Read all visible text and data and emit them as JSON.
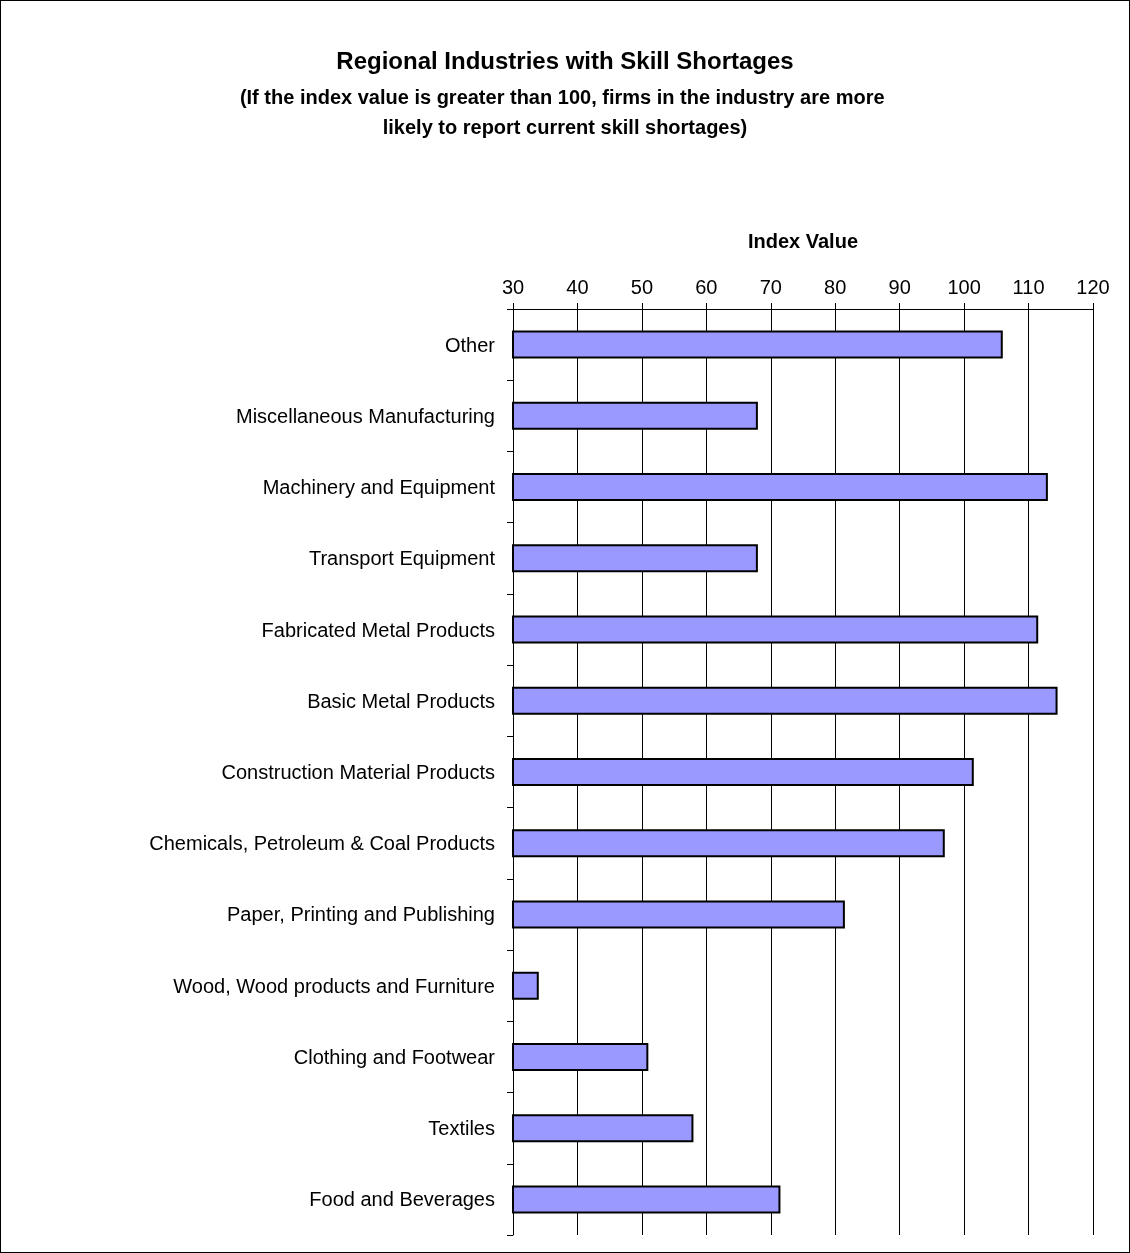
{
  "chart_data": {
    "type": "bar",
    "orientation": "horizontal",
    "title": "Regional Industries with Skill Shortages",
    "subtitle": "(If the index value is greater than 100, firms in the industry are more likely to report current skill shortages)",
    "xlabel": "Index Value",
    "categories": [
      "Other",
      "Miscellaneous Manufacturing",
      "Machinery and Equipment",
      "Transport Equipment",
      "Fabricated Metal Products",
      "Basic Metal Products",
      "Construction Material Products",
      "Chemicals, Petroleum & Coal Products",
      "Paper, Printing and Publishing",
      "Wood, Wood products and Furniture",
      "Clothing and Footwear",
      "Textiles",
      "Food and Beverages"
    ],
    "values": [
      106,
      68,
      113,
      68,
      111.5,
      114.5,
      101.5,
      97,
      81.5,
      34,
      51,
      58,
      71.5
    ],
    "color": "#9999ff",
    "xlim": [
      30,
      120
    ],
    "xticks": [
      30,
      40,
      50,
      60,
      70,
      80,
      90,
      100,
      110,
      120
    ],
    "grid": "x"
  }
}
